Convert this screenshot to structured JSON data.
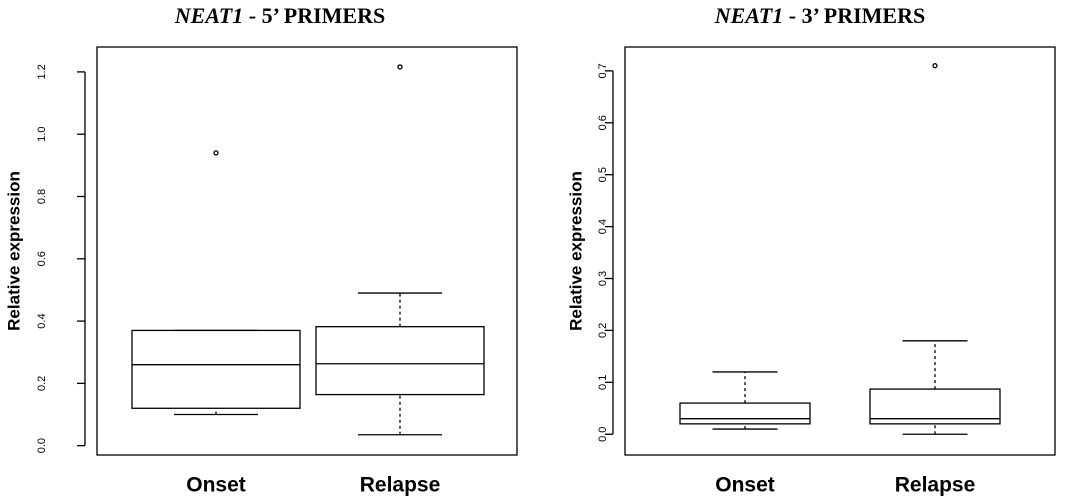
{
  "chart_data": [
    {
      "type": "box",
      "title_gene": "NEAT1",
      "title_rest": "- 5’ PRIMERS",
      "ylabel": "Relative expression",
      "categories": [
        "Onset",
        "Relapse"
      ],
      "boxes": [
        {
          "min": 0.1,
          "q1": 0.12,
          "median": 0.26,
          "q3": 0.37,
          "max": 0.37,
          "outliers": [
            0.94
          ]
        },
        {
          "min": 0.035,
          "q1": 0.164,
          "median": 0.263,
          "q3": 0.382,
          "max": 0.49,
          "outliers": [
            1.216
          ]
        }
      ],
      "ylim": [
        -0.03,
        1.28
      ],
      "yticks": [
        {
          "value": 0,
          "label": "0.0"
        },
        0.2,
        0.4,
        0.6,
        0.8,
        {
          "value": 1,
          "label": "1.0"
        },
        1.2
      ]
    },
    {
      "type": "box",
      "title_gene": "NEAT1",
      "title_rest": "- 3’ PRIMERS",
      "ylabel": "Relative expression",
      "categories": [
        "Onset",
        "Relapse"
      ],
      "boxes": [
        {
          "min": 0.01,
          "q1": 0.02,
          "median": 0.03,
          "q3": 0.06,
          "max": 0.12,
          "outliers": []
        },
        {
          "min": 0.0,
          "q1": 0.02,
          "median": 0.03,
          "q3": 0.087,
          "max": 0.18,
          "outliers": [
            0.71
          ]
        }
      ],
      "ylim": [
        -0.04,
        0.746
      ],
      "yticks": [
        {
          "value": 0,
          "label": "0.0"
        },
        0.1,
        0.2,
        0.3,
        0.4,
        0.5,
        0.6,
        0.7
      ]
    }
  ]
}
